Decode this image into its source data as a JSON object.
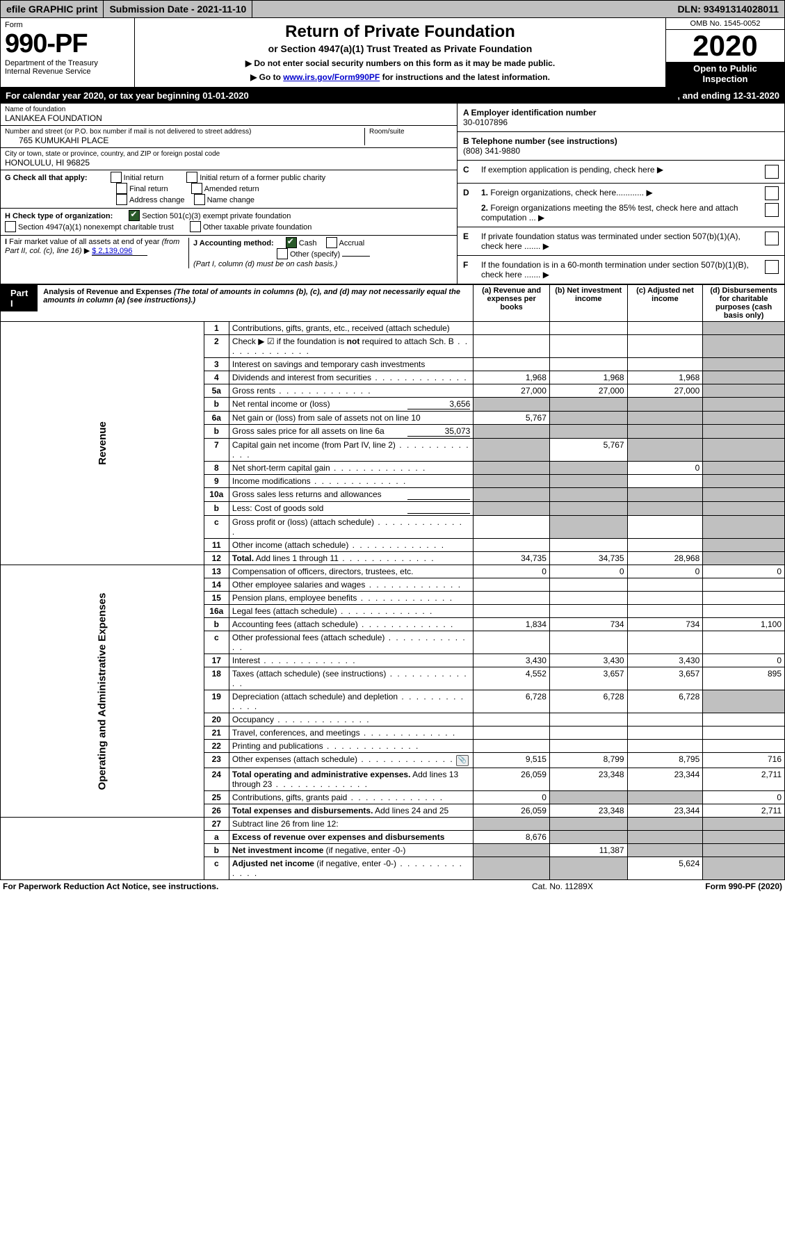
{
  "top": {
    "efile": "efile GRAPHIC print",
    "submission_label": "Submission Date - 2021-11-10",
    "dln": "DLN: 93491314028011"
  },
  "header": {
    "form_word": "Form",
    "form_number": "990-PF",
    "dept": "Department of the Treasury",
    "irs": "Internal Revenue Service",
    "title": "Return of Private Foundation",
    "subtitle": "or Section 4947(a)(1) Trust Treated as Private Foundation",
    "note1": "▶ Do not enter social security numbers on this form as it may be made public.",
    "note2_pre": "▶ Go to ",
    "note2_link": "www.irs.gov/Form990PF",
    "note2_post": " for instructions and the latest information.",
    "omb": "OMB No. 1545-0052",
    "year": "2020",
    "open": "Open to Public Inspection"
  },
  "calbar": {
    "left": "For calendar year 2020, or tax year beginning 01-01-2020",
    "right": ", and ending 12-31-2020"
  },
  "entity": {
    "name_label": "Name of foundation",
    "name": "LANIAKEA FOUNDATION",
    "street_label": "Number and street (or P.O. box number if mail is not delivered to street address)",
    "street": "765 KUMUKAHI PLACE",
    "room_label": "Room/suite",
    "room": "",
    "city_label": "City or town, state or province, country, and ZIP or foreign postal code",
    "city": "HONOLULU, HI  96825",
    "g_label": "G Check all that apply:",
    "g_initial": "Initial return",
    "g_initial_former": "Initial return of a former public charity",
    "g_final": "Final return",
    "g_amended": "Amended return",
    "g_address": "Address change",
    "g_name": "Name change",
    "h_label": "H Check type of organization:",
    "h_501c3": "Section 501(c)(3) exempt private foundation",
    "h_4947": "Section 4947(a)(1) nonexempt charitable trust",
    "h_other_tax": "Other taxable private foundation",
    "i_label": "I Fair market value of all assets at end of year (from Part II, col. (c), line 16) ▶",
    "i_value": "$  2,139,096",
    "j_label": "J Accounting method:",
    "j_cash": "Cash",
    "j_accrual": "Accrual",
    "j_other": "Other (specify)",
    "j_note": "(Part I, column (d) must be on cash basis.)",
    "a_label": "A Employer identification number",
    "a_val": "30-0107896",
    "b_label": "B Telephone number (see instructions)",
    "b_val": "(808) 341-9880",
    "c_text": "If exemption application is pending, check here ▶",
    "c_letter": "C",
    "d_letter": "D",
    "d1": "1. Foreign organizations, check here............  ▶",
    "d2": "2. Foreign organizations meeting the 85% test, check here and attach computation ...  ▶",
    "e_letter": "E",
    "e_text": "If private foundation status was terminated under section 507(b)(1)(A), check here .......  ▶",
    "f_letter": "F",
    "f_text": "If the foundation is in a 60-month termination under section 507(b)(1)(B), check here .......  ▶"
  },
  "part1": {
    "tag": "Part I",
    "title": "Analysis of Revenue and Expenses",
    "title_note": "(The total of amounts in columns (b), (c), and (d) may not necessarily equal the amounts in column (a) (see instructions).)",
    "col_a": "(a)  Revenue and expenses per books",
    "col_b": "(b)  Net investment income",
    "col_c": "(c)  Adjusted net income",
    "col_d": "(d)  Disbursements for charitable purposes (cash basis only)"
  },
  "sections": {
    "revenue": "Revenue",
    "opadmin": "Operating and Administrative Expenses"
  },
  "rows": [
    {
      "n": "1",
      "d": "Contributions, gifts, grants, etc., received (attach schedule)",
      "a": "",
      "b": "",
      "c": "",
      "dd": "",
      "shade_d": true
    },
    {
      "n": "2",
      "d": "Check ▶ ☑ if the foundation is <b>not</b> required to attach Sch. B",
      "a": "",
      "b": "",
      "c": "",
      "dd": "",
      "shade_d": true,
      "dots": true
    },
    {
      "n": "3",
      "d": "Interest on savings and temporary cash investments",
      "a": "",
      "b": "",
      "c": "",
      "dd": "",
      "shade_d": true
    },
    {
      "n": "4",
      "d": "Dividends and interest from securities",
      "a": "1,968",
      "b": "1,968",
      "c": "1,968",
      "dd": "",
      "shade_d": true,
      "dots": true
    },
    {
      "n": "5a",
      "d": "Gross rents",
      "a": "27,000",
      "b": "27,000",
      "c": "27,000",
      "dd": "",
      "shade_d": true,
      "dots": true
    },
    {
      "n": "b",
      "d": "Net rental income or (loss)",
      "inline_val": "3,656",
      "a": "",
      "b": "",
      "c": "",
      "dd": "",
      "shade_a": true,
      "shade_b": true,
      "shade_c": true,
      "shade_d": true
    },
    {
      "n": "6a",
      "d": "Net gain or (loss) from sale of assets not on line 10",
      "a": "5,767",
      "b": "",
      "c": "",
      "dd": "",
      "shade_b": true,
      "shade_c": true,
      "shade_d": true
    },
    {
      "n": "b",
      "d": "Gross sales price for all assets on line 6a",
      "inline_val": "35,073",
      "a": "",
      "b": "",
      "c": "",
      "dd": "",
      "shade_a": true,
      "shade_b": true,
      "shade_c": true,
      "shade_d": true
    },
    {
      "n": "7",
      "d": "Capital gain net income (from Part IV, line 2)",
      "a": "",
      "b": "5,767",
      "c": "",
      "dd": "",
      "shade_a": true,
      "shade_c": true,
      "shade_d": true,
      "dots": true
    },
    {
      "n": "8",
      "d": "Net short-term capital gain",
      "a": "",
      "b": "",
      "c": "0",
      "dd": "",
      "shade_a": true,
      "shade_b": true,
      "shade_d": true,
      "dots": true
    },
    {
      "n": "9",
      "d": "Income modifications",
      "a": "",
      "b": "",
      "c": "",
      "dd": "",
      "shade_a": true,
      "shade_b": true,
      "shade_d": true,
      "dots": true
    },
    {
      "n": "10a",
      "d": "Gross sales less returns and allowances",
      "inline_box": true,
      "a": "",
      "b": "",
      "c": "",
      "dd": "",
      "shade_a": true,
      "shade_b": true,
      "shade_c": true,
      "shade_d": true
    },
    {
      "n": "b",
      "d": "Less: Cost of goods sold",
      "inline_box": true,
      "a": "",
      "b": "",
      "c": "",
      "dd": "",
      "shade_a": true,
      "shade_b": true,
      "shade_c": true,
      "shade_d": true,
      "dots": true
    },
    {
      "n": "c",
      "d": "Gross profit or (loss) (attach schedule)",
      "a": "",
      "b": "",
      "c": "",
      "dd": "",
      "shade_b": true,
      "shade_d": true,
      "dots": true
    },
    {
      "n": "11",
      "d": "Other income (attach schedule)",
      "a": "",
      "b": "",
      "c": "",
      "dd": "",
      "shade_d": true,
      "dots": true
    },
    {
      "n": "12",
      "d": "<b>Total.</b> Add lines 1 through 11",
      "a": "34,735",
      "b": "34,735",
      "c": "28,968",
      "dd": "",
      "shade_d": true,
      "dots": true
    },
    {
      "n": "13",
      "d": "Compensation of officers, directors, trustees, etc.",
      "a": "0",
      "b": "0",
      "c": "0",
      "dd": "0"
    },
    {
      "n": "14",
      "d": "Other employee salaries and wages",
      "a": "",
      "b": "",
      "c": "",
      "dd": "",
      "dots": true
    },
    {
      "n": "15",
      "d": "Pension plans, employee benefits",
      "a": "",
      "b": "",
      "c": "",
      "dd": "",
      "dots": true
    },
    {
      "n": "16a",
      "d": "Legal fees (attach schedule)",
      "a": "",
      "b": "",
      "c": "",
      "dd": "",
      "dots": true
    },
    {
      "n": "b",
      "d": "Accounting fees (attach schedule)",
      "a": "1,834",
      "b": "734",
      "c": "734",
      "dd": "1,100",
      "dots": true
    },
    {
      "n": "c",
      "d": "Other professional fees (attach schedule)",
      "a": "",
      "b": "",
      "c": "",
      "dd": "",
      "dots": true
    },
    {
      "n": "17",
      "d": "Interest",
      "a": "3,430",
      "b": "3,430",
      "c": "3,430",
      "dd": "0",
      "dots": true
    },
    {
      "n": "18",
      "d": "Taxes (attach schedule) (see instructions)",
      "a": "4,552",
      "b": "3,657",
      "c": "3,657",
      "dd": "895",
      "dots": true
    },
    {
      "n": "19",
      "d": "Depreciation (attach schedule) and depletion",
      "a": "6,728",
      "b": "6,728",
      "c": "6,728",
      "dd": "",
      "shade_d": true,
      "dots": true
    },
    {
      "n": "20",
      "d": "Occupancy",
      "a": "",
      "b": "",
      "c": "",
      "dd": "",
      "dots": true
    },
    {
      "n": "21",
      "d": "Travel, conferences, and meetings",
      "a": "",
      "b": "",
      "c": "",
      "dd": "",
      "dots": true
    },
    {
      "n": "22",
      "d": "Printing and publications",
      "a": "",
      "b": "",
      "c": "",
      "dd": "",
      "dots": true
    },
    {
      "n": "23",
      "d": "Other expenses (attach schedule)",
      "a": "9,515",
      "b": "8,799",
      "c": "8,795",
      "dd": "716",
      "dots": true,
      "attach": true
    },
    {
      "n": "24",
      "d": "<b>Total operating and administrative expenses.</b> Add lines 13 through 23",
      "a": "26,059",
      "b": "23,348",
      "c": "23,344",
      "dd": "2,711",
      "dots": true
    },
    {
      "n": "25",
      "d": "Contributions, gifts, grants paid",
      "a": "0",
      "b": "",
      "c": "",
      "dd": "0",
      "shade_b": true,
      "shade_c": true,
      "dots": true
    },
    {
      "n": "26",
      "d": "<b>Total expenses and disbursements.</b> Add lines 24 and 25",
      "a": "26,059",
      "b": "23,348",
      "c": "23,344",
      "dd": "2,711"
    },
    {
      "n": "27",
      "d": "Subtract line 26 from line 12:",
      "a": "",
      "b": "",
      "c": "",
      "dd": "",
      "shade_a": true,
      "shade_b": true,
      "shade_c": true,
      "shade_d": true
    },
    {
      "n": "a",
      "d": "<b>Excess of revenue over expenses and disbursements</b>",
      "a": "8,676",
      "b": "",
      "c": "",
      "dd": "",
      "shade_b": true,
      "shade_c": true,
      "shade_d": true
    },
    {
      "n": "b",
      "d": "<b>Net investment income</b> (if negative, enter -0-)",
      "a": "",
      "b": "11,387",
      "c": "",
      "dd": "",
      "shade_a": true,
      "shade_c": true,
      "shade_d": true
    },
    {
      "n": "c",
      "d": "<b>Adjusted net income</b> (if negative, enter -0-)",
      "a": "",
      "b": "",
      "c": "5,624",
      "dd": "",
      "shade_a": true,
      "shade_b": true,
      "shade_d": true,
      "dots": true
    }
  ],
  "footer": {
    "left": "For Paperwork Reduction Act Notice, see instructions.",
    "mid": "Cat. No. 11289X",
    "right": "Form 990-PF (2020)"
  }
}
